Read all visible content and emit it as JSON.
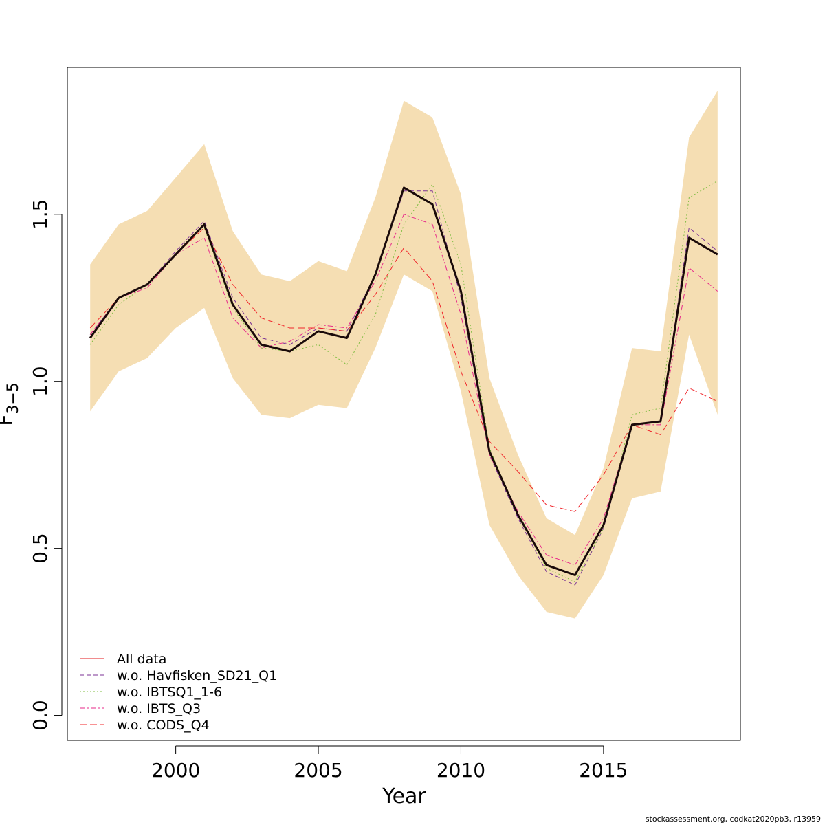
{
  "chart_data": {
    "type": "line",
    "xlabel": "Year",
    "ylabel": "F",
    "ylabel_subscript": "3−5",
    "xlim": [
      1996.2,
      2019.8
    ],
    "ylim": [
      -0.075,
      1.94
    ],
    "x_ticks": [
      2000,
      2005,
      2010,
      2015
    ],
    "y_ticks": [
      0.0,
      0.5,
      1.0,
      1.5
    ],
    "x_tick_labels": [
      "2000",
      "2005",
      "2010",
      "2015"
    ],
    "y_tick_labels": [
      "0.0",
      "0.5",
      "1.0",
      "1.5"
    ],
    "legend_position": "bottom-left",
    "x": [
      1997,
      1998,
      1999,
      2000,
      2001,
      2002,
      2003,
      2004,
      2005,
      2006,
      2007,
      2008,
      2009,
      2010,
      2011,
      2012,
      2013,
      2014,
      2015,
      2016,
      2017,
      2018,
      2019
    ],
    "band": {
      "color": "#f5deb3",
      "lower": [
        0.91,
        1.03,
        1.07,
        1.16,
        1.22,
        1.01,
        0.9,
        0.89,
        0.93,
        0.92,
        1.1,
        1.32,
        1.27,
        0.97,
        0.57,
        0.42,
        0.31,
        0.29,
        0.42,
        0.65,
        0.67,
        1.14,
        0.9
      ],
      "upper": [
        1.35,
        1.47,
        1.51,
        1.61,
        1.71,
        1.45,
        1.32,
        1.3,
        1.36,
        1.33,
        1.55,
        1.84,
        1.79,
        1.56,
        1.01,
        0.78,
        0.59,
        0.54,
        0.74,
        1.1,
        1.09,
        1.73,
        1.87
      ]
    },
    "main_line": {
      "name": "",
      "color": "#1a0a0a",
      "values": [
        1.13,
        1.25,
        1.29,
        1.38,
        1.47,
        1.23,
        1.11,
        1.09,
        1.15,
        1.13,
        1.32,
        1.58,
        1.53,
        1.27,
        0.79,
        0.6,
        0.45,
        0.42,
        0.57,
        0.87,
        0.88,
        1.43,
        1.38
      ]
    },
    "series": [
      {
        "name": "All data",
        "color": "#e31a1c",
        "dash": "",
        "in_legend": true,
        "values": [
          1.13,
          1.25,
          1.29,
          1.38,
          1.47,
          1.23,
          1.11,
          1.09,
          1.15,
          1.13,
          1.32,
          1.58,
          1.53,
          1.27,
          0.79,
          0.6,
          0.45,
          0.42,
          0.57,
          0.87,
          0.88,
          1.43,
          1.38
        ]
      },
      {
        "name": "w.o. Havfisken_SD21_Q1",
        "color": "#7b3294",
        "dash": "6,4",
        "in_legend": true,
        "values": [
          1.14,
          1.25,
          1.29,
          1.39,
          1.48,
          1.25,
          1.13,
          1.11,
          1.16,
          1.15,
          1.32,
          1.57,
          1.57,
          1.25,
          0.78,
          0.59,
          0.43,
          0.39,
          0.56,
          0.87,
          0.88,
          1.46,
          1.39
        ]
      },
      {
        "name": "w.o. IBTSQ1_1-6",
        "color": "#7fbc41",
        "dash": "2,3",
        "in_legend": true,
        "values": [
          1.11,
          1.23,
          1.29,
          1.38,
          1.46,
          1.22,
          1.1,
          1.09,
          1.11,
          1.05,
          1.2,
          1.47,
          1.59,
          1.35,
          0.8,
          0.6,
          0.44,
          0.4,
          0.56,
          0.9,
          0.92,
          1.55,
          1.6
        ]
      },
      {
        "name": "w.o. IBTS_Q3",
        "color": "#e7298a",
        "dash": "8,3,2,3",
        "in_legend": true,
        "values": [
          1.14,
          1.25,
          1.28,
          1.38,
          1.43,
          1.19,
          1.1,
          1.12,
          1.17,
          1.16,
          1.3,
          1.5,
          1.47,
          1.2,
          0.78,
          0.61,
          0.48,
          0.45,
          0.59,
          0.87,
          0.87,
          1.34,
          1.27
        ]
      },
      {
        "name": "w.o. CODS_Q4",
        "color": "#f0242a",
        "dash": "10,5",
        "in_legend": true,
        "values": [
          1.16,
          1.25,
          1.29,
          1.38,
          1.46,
          1.29,
          1.19,
          1.16,
          1.16,
          1.15,
          1.26,
          1.4,
          1.3,
          1.03,
          0.82,
          0.73,
          0.63,
          0.61,
          0.72,
          0.87,
          0.84,
          0.98,
          0.94
        ]
      }
    ]
  },
  "footer": {
    "credit": "stockassessment.org, codkat2020pb3, r13959"
  }
}
